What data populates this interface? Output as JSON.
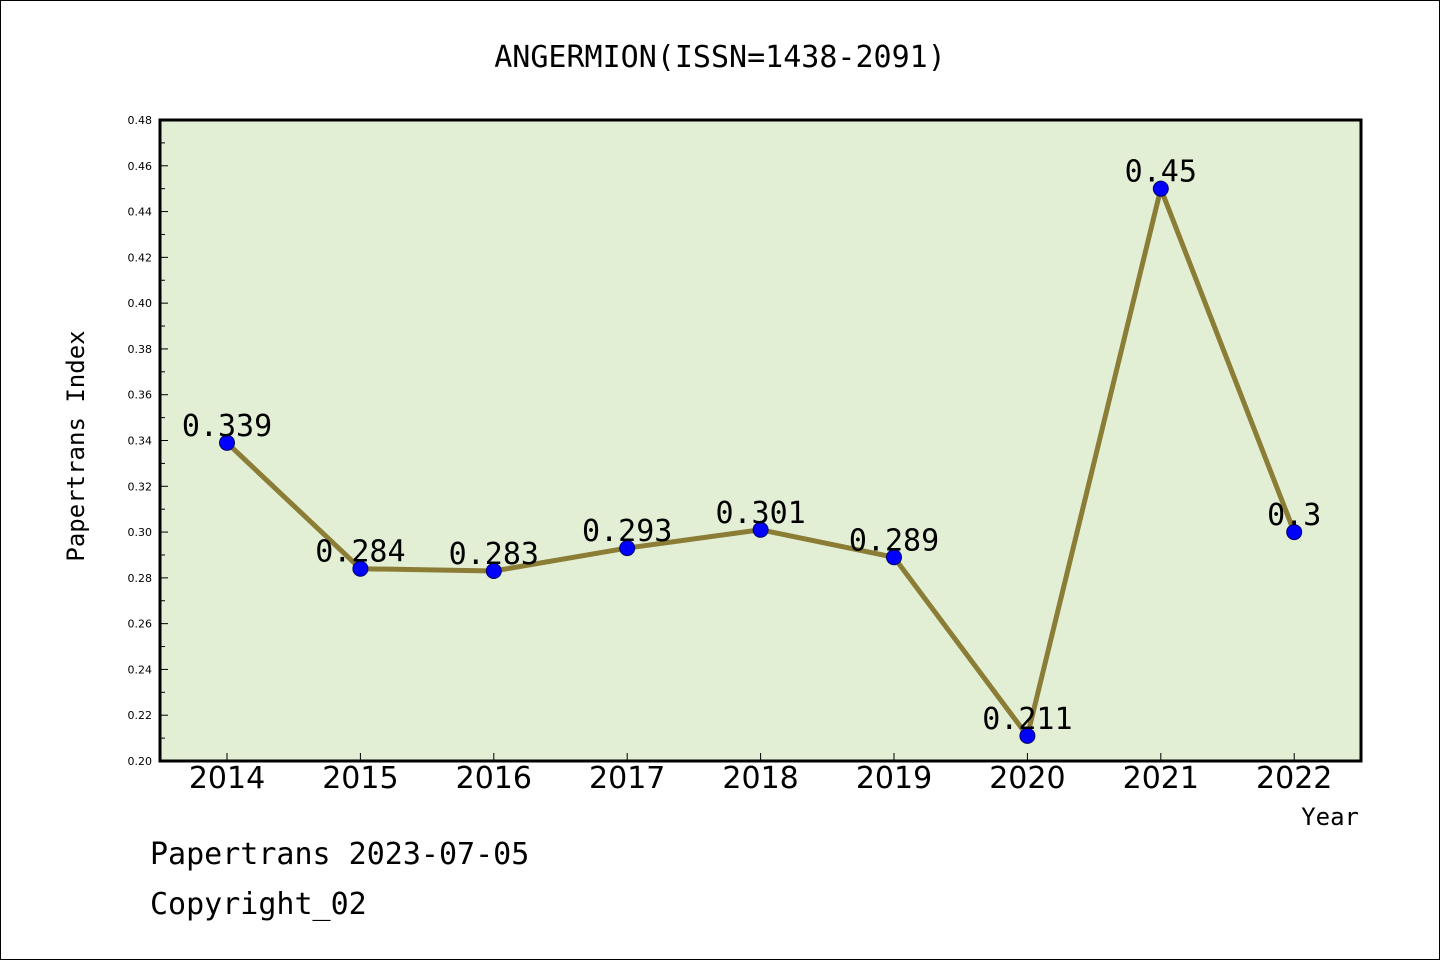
{
  "chart_data": {
    "type": "line",
    "title": "ANGERMION(ISSN=1438-2091)",
    "xlabel": "Year",
    "ylabel": "Papertrans Index",
    "categories": [
      "2014",
      "2015",
      "2016",
      "2017",
      "2018",
      "2019",
      "2020",
      "2021",
      "2022"
    ],
    "values": [
      0.339,
      0.284,
      0.283,
      0.293,
      0.301,
      0.289,
      0.211,
      0.45,
      0.3
    ],
    "data_labels": [
      "0.339",
      "0.284",
      "0.283",
      "0.293",
      "0.301",
      "0.289",
      "0.211",
      "0.45",
      "0.3"
    ],
    "ylim": [
      0.2,
      0.48
    ],
    "yticks": [
      "0.20",
      "0.22",
      "0.24",
      "0.26",
      "0.28",
      "0.30",
      "0.32",
      "0.34",
      "0.36",
      "0.38",
      "0.40",
      "0.42",
      "0.44",
      "0.46",
      "0.48"
    ],
    "grid": false,
    "legend": "none",
    "colors": {
      "plot_background": "#e2efd5",
      "line": "#8b7d36",
      "marker": "#0000ff"
    }
  },
  "footer": {
    "date_line": "Papertrans 2023-07-05",
    "copyright": "Copyright_02"
  }
}
